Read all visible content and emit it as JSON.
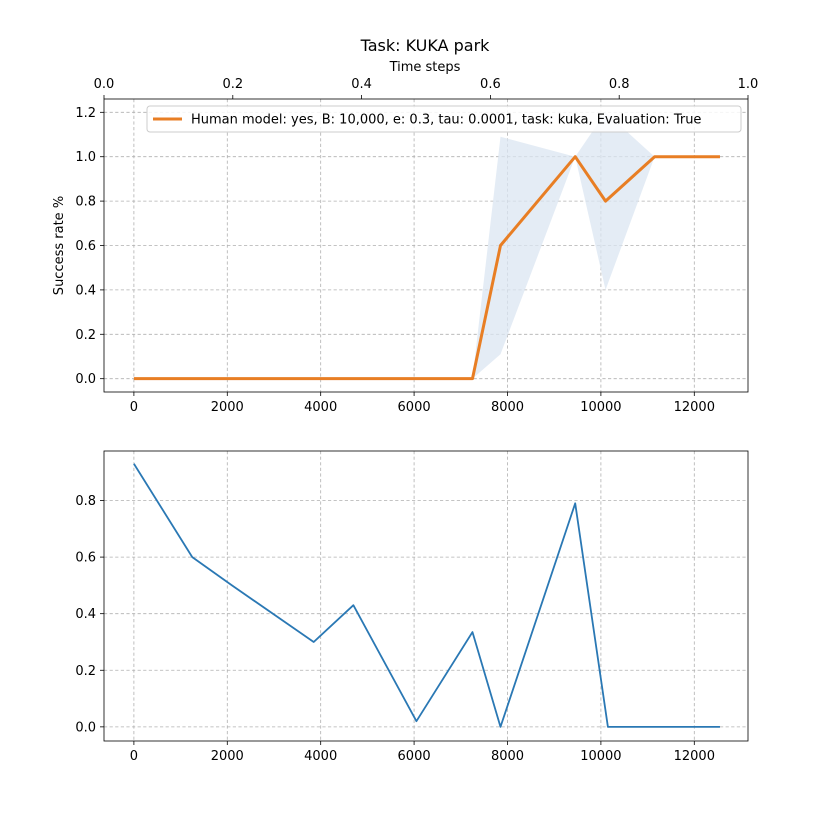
{
  "chart_data": [
    {
      "type": "line",
      "title": "Task: KUKA park",
      "xlabel": "",
      "ylabel": "Success rate %",
      "secondary_xlabel": "Time steps",
      "secondary_xticks": [
        "0.0",
        "0.2",
        "0.4",
        "0.6",
        "0.8",
        "1.0"
      ],
      "xlim": [
        -640,
        13150
      ],
      "ylim": [
        -0.06,
        1.26
      ],
      "xticks": [
        0,
        2000,
        4000,
        6000,
        8000,
        10000,
        12000
      ],
      "yticks": [
        0.0,
        0.2,
        0.4,
        0.6,
        0.8,
        1.0,
        1.2
      ],
      "grid": true,
      "legend": "top-right",
      "colors": {
        "line": "#e87e24",
        "band": "#dbe6f2"
      },
      "series": [
        {
          "name": "Human model: yes, B: 10,000, e: 0.3, tau: 0.0001, task: kuka, Evaluation: True",
          "x": [
            0,
            1250,
            2500,
            3750,
            5000,
            6250,
            7250,
            7850,
            9450,
            10100,
            11150,
            12550
          ],
          "y": [
            0,
            0,
            0,
            0,
            0,
            0,
            0,
            0.6,
            1.0,
            0.8,
            1.0,
            1.0
          ],
          "band_low": [
            0,
            0,
            0,
            0,
            0,
            0,
            0,
            0.11,
            1.0,
            0.4,
            1.0,
            1.0
          ],
          "band_high": [
            0,
            0,
            0,
            0,
            0,
            0,
            0,
            1.09,
            1.0,
            1.2,
            1.0,
            1.0
          ]
        }
      ]
    },
    {
      "type": "line",
      "title": "",
      "xlabel": "",
      "ylabel": "",
      "xlim": [
        -640,
        13150
      ],
      "ylim": [
        -0.05,
        0.975
      ],
      "xticks": [
        0,
        2000,
        4000,
        6000,
        8000,
        10000,
        12000
      ],
      "yticks": [
        0.0,
        0.2,
        0.4,
        0.6,
        0.8
      ],
      "grid": true,
      "colors": {
        "line": "#2a78b4"
      },
      "series": [
        {
          "x": [
            0,
            1250,
            2100,
            3850,
            4700,
            6050,
            7250,
            7850,
            9450,
            10150,
            12550
          ],
          "y": [
            0.93,
            0.6,
            0.5,
            0.3,
            0.43,
            0.02,
            0.335,
            0.0,
            0.79,
            0.0,
            0.0
          ]
        }
      ]
    }
  ]
}
